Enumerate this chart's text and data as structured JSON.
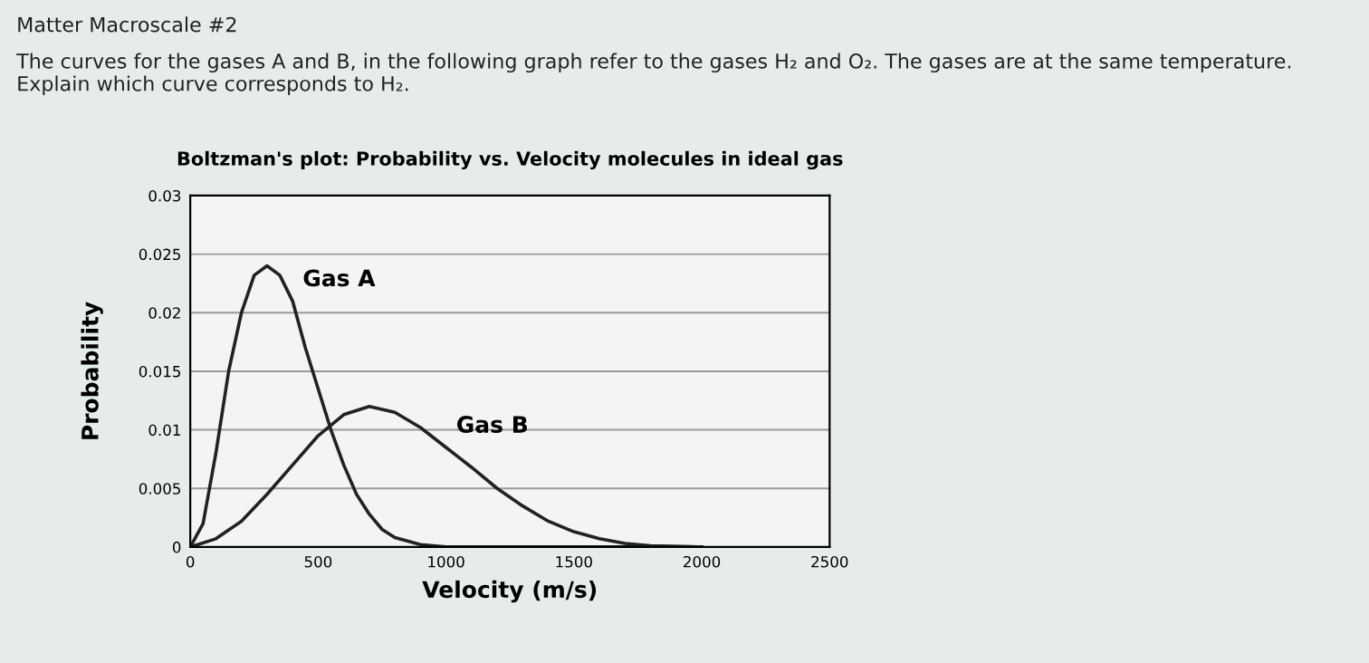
{
  "chart_data": {
    "type": "line",
    "title": "Boltzman's plot: Probability vs. Velocity molecules in ideal gas",
    "xlabel": "Velocity (m/s)",
    "ylabel": "Probability",
    "annotations": [
      "Matter Macroscale #2",
      "The curves for the gases A and B, in the following graph refer to the gases H₂ and O₂. The gases are at the same temperature. Explain which curve corresponds to H₂.",
      {
        "text": "Gas A",
        "x": 400,
        "y": 0.021
      },
      {
        "text": "Gas B",
        "x": 1000,
        "y": 0.0085
      }
    ],
    "series": [
      {
        "color": "#222222",
        "x": [
          0,
          50,
          100,
          150,
          200,
          250,
          300,
          350,
          400,
          450,
          500,
          550,
          600,
          650,
          700,
          750,
          800,
          900,
          1000,
          1200,
          1500,
          2000
        ],
        "values": [
          0,
          0.002,
          0.008,
          0.015,
          0.02,
          0.0232,
          0.024,
          0.0232,
          0.021,
          0.017,
          0.0135,
          0.01,
          0.007,
          0.0045,
          0.0028,
          0.0015,
          0.0008,
          0.0002,
          0,
          0,
          0,
          0
        ]
      },
      {
        "color": "#222222",
        "x": [
          0,
          100,
          200,
          300,
          400,
          500,
          600,
          700,
          800,
          900,
          1000,
          1100,
          1200,
          1300,
          1400,
          1500,
          1600,
          1700,
          1800,
          2000
        ],
        "values": [
          0,
          0.0007,
          0.0022,
          0.0045,
          0.007,
          0.0095,
          0.0113,
          0.012,
          0.0115,
          0.0102,
          0.0085,
          0.0068,
          0.005,
          0.0035,
          0.0022,
          0.0013,
          0.0007,
          0.0003,
          0.0001,
          0
        ]
      }
    ],
    "xlim": [
      0,
      2500
    ],
    "xticks": [
      0,
      500,
      1000,
      1500,
      2000,
      2500
    ],
    "ylim": [
      0,
      0.03
    ],
    "yticks": [
      0,
      0.005,
      0.01,
      0.015,
      0.02,
      0.025,
      0.03
    ],
    "grid": "y",
    "line_style": "solid"
  }
}
